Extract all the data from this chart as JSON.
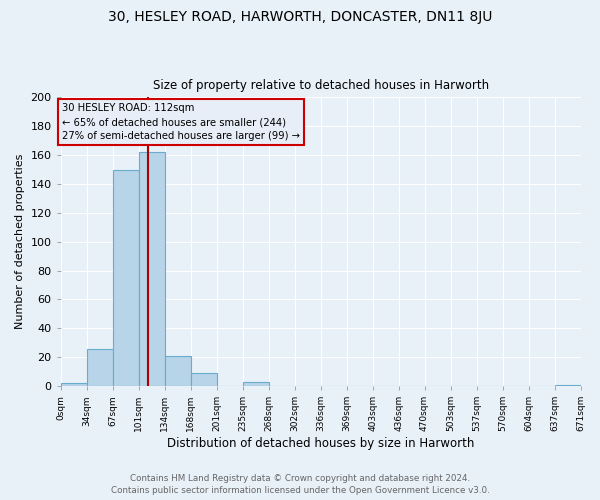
{
  "title": "30, HESLEY ROAD, HARWORTH, DONCASTER, DN11 8JU",
  "subtitle": "Size of property relative to detached houses in Harworth",
  "xlabel": "Distribution of detached houses by size in Harworth",
  "ylabel": "Number of detached properties",
  "bin_width": 33.5,
  "bin_starts": [
    0,
    33.5,
    67,
    100.5,
    134,
    167.5,
    201,
    234.5,
    268,
    301.5,
    335,
    368.5,
    402,
    435.5,
    469,
    502.5,
    536,
    569.5,
    603,
    636.5
  ],
  "bar_heights": [
    2,
    26,
    150,
    162,
    21,
    9,
    0,
    3,
    0,
    0,
    0,
    0,
    0,
    0,
    0,
    0,
    0,
    0,
    0,
    1
  ],
  "tick_labels": [
    "0sqm",
    "34sqm",
    "67sqm",
    "101sqm",
    "134sqm",
    "168sqm",
    "201sqm",
    "235sqm",
    "268sqm",
    "302sqm",
    "336sqm",
    "369sqm",
    "403sqm",
    "436sqm",
    "470sqm",
    "503sqm",
    "537sqm",
    "570sqm",
    "604sqm",
    "637sqm",
    "671sqm"
  ],
  "tick_positions": [
    0,
    33.5,
    67,
    100.5,
    134,
    167.5,
    201,
    234.5,
    268,
    301.5,
    335,
    368.5,
    402,
    435.5,
    469,
    502.5,
    536,
    569.5,
    603,
    636.5,
    670
  ],
  "bar_color": "#b8d4e8",
  "bar_edge_color": "#6aacce",
  "property_line_x": 112,
  "property_line_color": "#aa0000",
  "annotation_line1": "30 HESLEY ROAD: 112sqm",
  "annotation_line2": "← 65% of detached houses are smaller (244)",
  "annotation_line3": "27% of semi-detached houses are larger (99) →",
  "annotation_box_edgecolor": "#cc0000",
  "annotation_box_facecolor": "#e8eef8",
  "ylim": [
    0,
    200
  ],
  "yticks": [
    0,
    20,
    40,
    60,
    80,
    100,
    120,
    140,
    160,
    180,
    200
  ],
  "footer_line1": "Contains HM Land Registry data © Crown copyright and database right 2024.",
  "footer_line2": "Contains public sector information licensed under the Open Government Licence v3.0.",
  "bg_color": "#e8f0f8",
  "grid_color": "#ffffff",
  "xlim_max": 670
}
